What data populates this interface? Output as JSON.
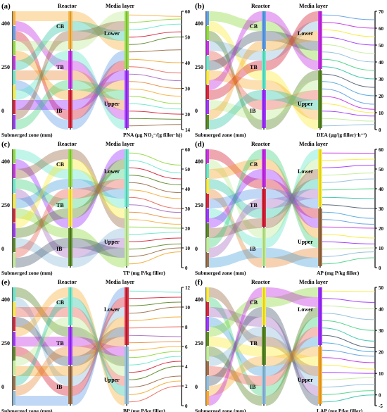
{
  "shared": {
    "zone_label": "Submerged zone (mm)",
    "reactor_label": "Reactor",
    "media_label": "Media layer",
    "reactor_items": [
      "CB",
      "TB",
      "IB"
    ],
    "media_items": [
      "Lower",
      "Upper"
    ],
    "zone_ticks": [
      "400",
      "250",
      "0"
    ]
  },
  "chart_data": [
    {
      "type": "parallel_sets",
      "panel": "(a)",
      "xlabel": "PNA (μg NO₂⁻/(g filler·h))",
      "axis_ticks": [
        "14",
        "20",
        "30",
        "40",
        "50",
        "60"
      ],
      "ylim": [
        14,
        60
      ],
      "values": [
        58,
        57,
        55,
        52,
        50,
        45,
        40,
        36,
        33,
        30,
        27,
        24,
        22,
        20,
        18,
        16
      ]
    },
    {
      "type": "parallel_sets",
      "panel": "(b)",
      "xlabel": "DEA (μg/(g filler)·h⁻¹)",
      "axis_ticks": [
        "0",
        "10",
        "20",
        "30",
        "40",
        "50",
        "60",
        "70"
      ],
      "ylim": [
        0,
        70
      ],
      "values": [
        65,
        60,
        55,
        50,
        45,
        40,
        35,
        30,
        25,
        20,
        15,
        12,
        10,
        8,
        5,
        3
      ]
    },
    {
      "type": "parallel_sets",
      "panel": "(c)",
      "xlabel": "TP (mg P/kg filler)",
      "axis_ticks": [
        "0",
        "10",
        "20",
        "30",
        "40",
        "50",
        "60"
      ],
      "ylim": [
        0,
        60
      ],
      "values": [
        52,
        48,
        45,
        42,
        38,
        35,
        30,
        28,
        25,
        22,
        20,
        18,
        15,
        12,
        10,
        8
      ]
    },
    {
      "type": "parallel_sets",
      "panel": "(d)",
      "xlabel": "AP (mg P/kg filler)",
      "axis_ticks": [
        "0",
        "10",
        "20",
        "30",
        "40",
        "50",
        "60"
      ],
      "ylim": [
        0,
        60
      ],
      "values": [
        58,
        55,
        52,
        48,
        45,
        40,
        35,
        30,
        25,
        22,
        20,
        15,
        12,
        10,
        8,
        5
      ]
    },
    {
      "type": "parallel_sets",
      "panel": "(e)",
      "xlabel": "BP (mg P/kg filler)",
      "axis_ticks": [
        "0",
        "2",
        "4",
        "6",
        "8",
        "10",
        "12"
      ],
      "ylim": [
        0,
        12
      ],
      "values": [
        11.5,
        11,
        10.5,
        10,
        9,
        8,
        7,
        6.5,
        6,
        5.5,
        5,
        4.5,
        4,
        3,
        2.5,
        2
      ]
    },
    {
      "type": "parallel_sets",
      "panel": "(f)",
      "xlabel": "LAP (mg P/kg filler)",
      "axis_ticks": [
        "-5",
        "0",
        "10",
        "20",
        "30",
        "40",
        "50"
      ],
      "ylim": [
        -5,
        50
      ],
      "values": [
        48,
        43,
        40,
        35,
        30,
        25,
        22,
        20,
        18,
        15,
        12,
        10,
        8,
        5,
        2,
        0
      ]
    }
  ]
}
